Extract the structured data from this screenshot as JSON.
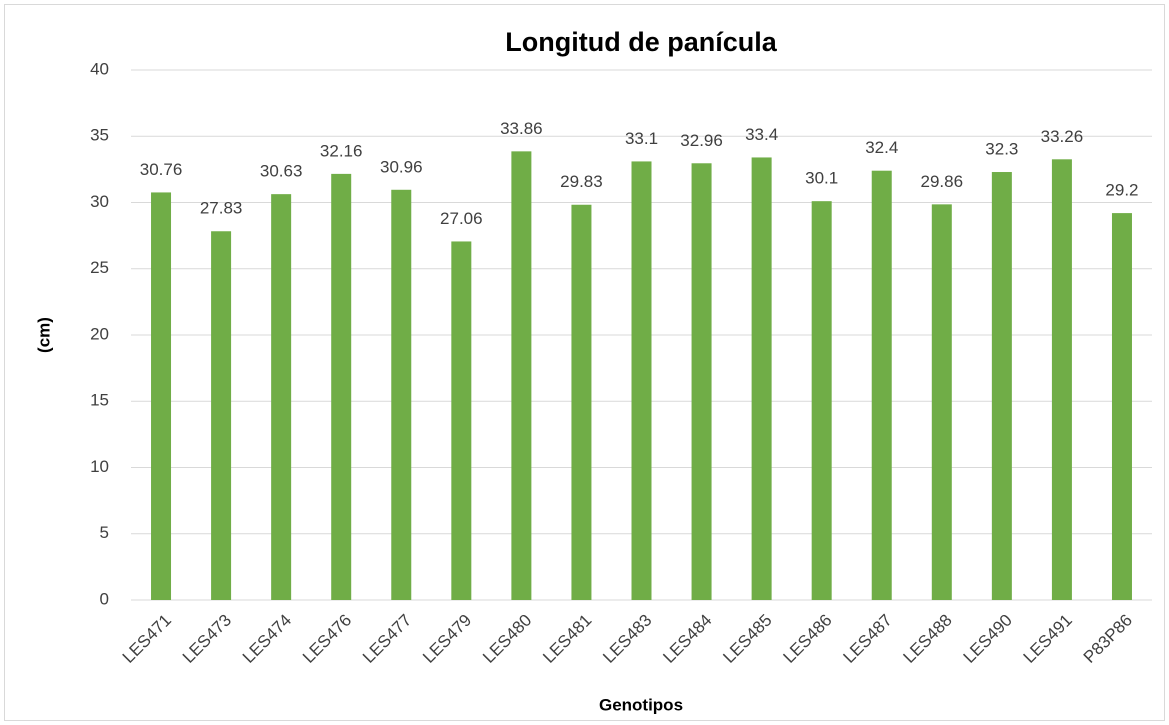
{
  "chart_data": {
    "type": "bar",
    "title": "Longitud de panícula",
    "x_label": "Genotipos",
    "y_label": "(cm)",
    "categories": [
      "LES471",
      "LES473",
      "LES474",
      "LES476",
      "LES477",
      "LES479",
      "LES480",
      "LES481",
      "LES483",
      "LES484",
      "LES485",
      "LES486",
      "LES487",
      "LES488",
      "LES490",
      "LES491",
      "P83P86"
    ],
    "values": [
      30.76,
      27.83,
      30.63,
      32.16,
      30.96,
      27.06,
      33.86,
      29.83,
      33.1,
      32.96,
      33.4,
      30.1,
      32.4,
      29.86,
      32.3,
      33.26,
      29.2
    ],
    "color": "#70ad47",
    "ylim": [
      0,
      40
    ],
    "yticks": [
      0,
      5,
      10,
      15,
      20,
      25,
      30,
      35,
      40
    ],
    "grid": true
  }
}
